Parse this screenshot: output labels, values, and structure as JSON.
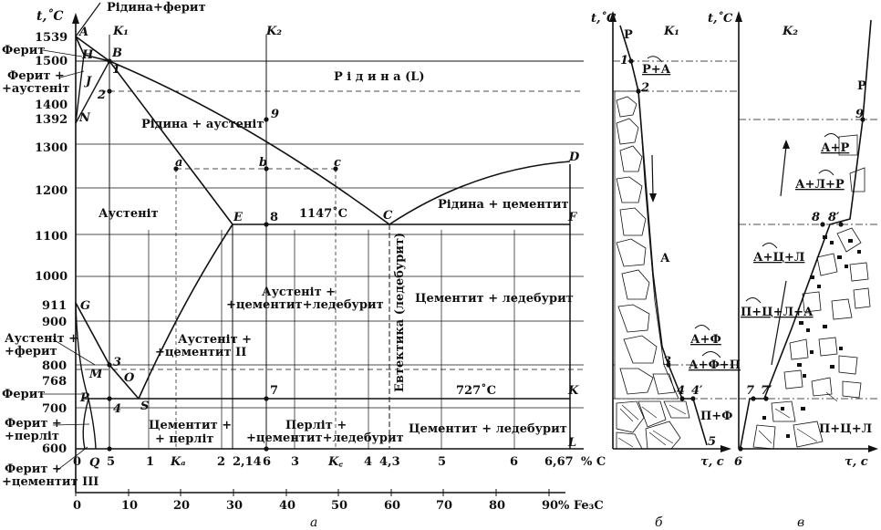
{
  "figures": {
    "a": "а",
    "b": "б",
    "c": "в"
  },
  "main": {
    "y_axis_title": "t,˚C",
    "temperatures": [
      "1539",
      "1500",
      "1400",
      "1392",
      "1300",
      "1200",
      "1100",
      "1000",
      "911",
      "900",
      "800",
      "768",
      "700",
      "600"
    ],
    "x_carbon_ticks": [
      "0",
      "5",
      "1",
      "2",
      "2,14",
      "6",
      "3",
      "4",
      "4,3",
      "5",
      "6",
      "6,67"
    ],
    "x_carbon_unit": "% C",
    "x_fe3c_ticks": [
      "0",
      "10",
      "20",
      "30",
      "40",
      "50",
      "60",
      "70",
      "80",
      "90"
    ],
    "x_fe3c_unit": "% Fe₃C",
    "k_labels": {
      "k1": "K₁",
      "k2": "K₂",
      "ka": "Kₐ",
      "kc": "K꜀"
    },
    "points": {
      "A": "A",
      "H": "H",
      "B": "B",
      "J": "J",
      "N": "N",
      "G": "G",
      "E": "E",
      "C": "C",
      "D": "D",
      "F": "F",
      "M": "M",
      "O": "O",
      "P": "P",
      "S": "S",
      "K": "K",
      "Q": "Q",
      "L": "L",
      "p1": "1",
      "p2": "2",
      "p3": "3",
      "p4": "4",
      "p5": "5",
      "p7": "7",
      "p8": "8",
      "p9": "9",
      "a": "a",
      "b": "b",
      "c": "c"
    },
    "regions": {
      "liquid": "Р і д и н а  (L)",
      "liquid_austenite": "Рідина + аустеніт",
      "liquid_cementite": "Рідина + цементит",
      "austenite": "Аустеніт",
      "temp1147": "1147˚C",
      "austenite_cem_ledeb_1": "Аустеніт +",
      "austenite_cem_ledeb_2": "+цементит+ледебурит",
      "cementite_ledeburite_upper": "Цементит + ледебурит",
      "eutectic": "Евтектика (ледебурит)",
      "austenite_cem2_1": "Аустеніт +",
      "austenite_cem2_2": "+цементит II",
      "temp727": "727˚C",
      "cementite_pearlite_1": "Цементит +",
      "cementite_pearlite_2": "+ перліт",
      "pearlite_cem_ledeb_1": "Перліт +",
      "pearlite_cem_ledeb_2": "+цементит+ледебурит",
      "cementite_ledeburite_lower": "Цементит + ледебурит",
      "liquid_ferrite": "Рідина+ферит",
      "ferrite_top": "Ферит",
      "ferrite_austenite_1": "Ферит +",
      "ferrite_austenite_2": "+аустеніт",
      "austenite_ferrite_1": "Аустеніт +",
      "austenite_ferrite_2": "+ферит",
      "ferrite_mid": "Ферит",
      "ferrite_pearlite_1": "Ферит +",
      "ferrite_pearlite_2": "+перліт",
      "ferrite_cem3_1": "Ферит +",
      "ferrite_cem3_2": "+цементит III"
    }
  },
  "panel_b": {
    "axis_title": "t,˚C",
    "k_label": "K₁",
    "time_label": "τ, с",
    "labels": {
      "P": "Р",
      "p1": "1",
      "p2": "2",
      "PA": "Р+А",
      "A": "А",
      "p3": "3",
      "AF": "А+Ф",
      "p4": "4",
      "p4b": "4′",
      "AFP": "А+Ф+П",
      "PF": "П+Ф",
      "p5": "5"
    }
  },
  "panel_c": {
    "axis_title": "t,˚C",
    "k_label": "K₂",
    "time_label": "τ, с",
    "labels": {
      "P": "Р",
      "p9": "9",
      "AP": "А+Р",
      "ALP": "А+Л+Р",
      "p8": "8",
      "p8b": "8′",
      "ACL": "А+Ц+Л",
      "PCLA": "П+Ц+Л+А",
      "p7": "7",
      "p7b": "7′",
      "p6": "6",
      "PCL": "П+Ц+Л"
    }
  }
}
